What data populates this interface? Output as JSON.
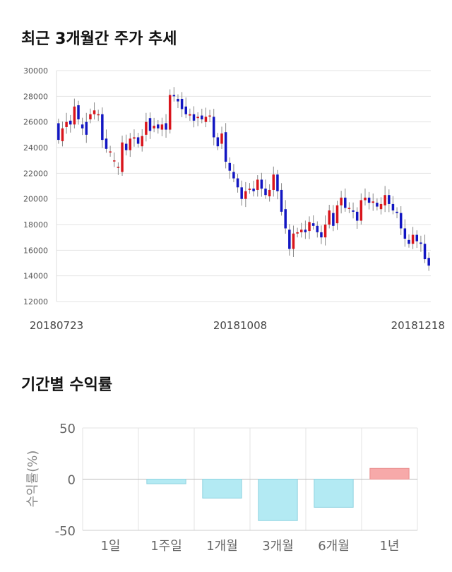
{
  "candle_section": {
    "title": "최근 3개월간 주가 추세"
  },
  "returns_section": {
    "title": "기간별 수익률"
  },
  "colors": {
    "up": "#d9151c",
    "down": "#1216c2",
    "wick": "#888888",
    "grid": "#e3e3e3",
    "negative_bar": "#b3eaf3",
    "negative_border": "#8fd3e0",
    "positive_bar": "#f7a9a9",
    "positive_border": "#e88c8c"
  },
  "chart_data": [
    {
      "type": "candlestick",
      "title": "최근 3개월간 주가 추세",
      "ylim": [
        12000,
        30000
      ],
      "y_ticks": [
        "30000",
        "28000",
        "26000",
        "24000",
        "22000",
        "20000",
        "18000",
        "16000",
        "14000",
        "12000"
      ],
      "x_tick_labels": [
        "20180723",
        "20181008",
        "20181218"
      ],
      "grid": true,
      "close": [
        24600,
        25500,
        26000,
        25800,
        27200,
        26200,
        25500,
        25000,
        26600,
        26900,
        26600,
        24600,
        23900,
        23700,
        23000,
        22500,
        24400,
        23800,
        24700,
        24800,
        24300,
        24900,
        26000,
        25300,
        25700,
        25500,
        25800,
        25400,
        28100,
        28000,
        27600,
        27000,
        26600,
        26600,
        26100,
        26400,
        26200,
        26400,
        26500,
        24800,
        24100,
        25100,
        22900,
        22200,
        21600,
        20900,
        20000,
        20600,
        20800,
        20600,
        21500,
        20800,
        20300,
        20700,
        21900,
        20600,
        19000,
        17700,
        16100,
        17300,
        17400,
        17600,
        17400,
        18200,
        17900,
        17400,
        17000,
        18000,
        19100,
        17900,
        19500,
        20100,
        19300,
        19300,
        19000,
        18300,
        19900,
        20100,
        19700,
        19800,
        19400,
        19600,
        20300,
        19600,
        19100,
        18900,
        17700,
        16900,
        16500,
        17200,
        16700,
        16500,
        15300,
        14800
      ],
      "open": [
        25900,
        24500,
        25600,
        26100,
        25800,
        27300,
        25800,
        26000,
        26200,
        26600,
        26600,
        26600,
        24700,
        23700,
        23000,
        22500,
        22100,
        24300,
        23800,
        24700,
        24800,
        24100,
        25000,
        26300,
        25500,
        25800,
        25400,
        25900,
        25400,
        28100,
        27800,
        27800,
        27200,
        26500,
        26600,
        26300,
        26500,
        26000,
        26500,
        26400,
        24800,
        24300,
        25200,
        22800,
        22100,
        21600,
        20900,
        20000,
        20700,
        20800,
        20700,
        21500,
        20800,
        20200,
        20700,
        21900,
        20700,
        19200,
        17600,
        16100,
        17300,
        17400,
        17600,
        17500,
        18100,
        17900,
        17400,
        17000,
        18000,
        18900,
        18100,
        19500,
        20100,
        19300,
        19100,
        19000,
        18300,
        19900,
        20100,
        19700,
        19700,
        19200,
        19500,
        20300,
        19600,
        19000,
        18900,
        17700,
        16800,
        16500,
        17200,
        16600,
        16500,
        15400
      ]
    },
    {
      "type": "bar",
      "title": "기간별 수익률",
      "ylabel": "수익률(%)",
      "ylim": [
        -50,
        50
      ],
      "y_ticks": [
        "50",
        "0",
        "-50"
      ],
      "categories": [
        "1일",
        "1주일",
        "1개월",
        "3개월",
        "6개월",
        "1년"
      ],
      "values": [
        0,
        -4.5,
        -18.5,
        -40.5,
        -27.5,
        10.5
      ],
      "grid": true
    }
  ]
}
